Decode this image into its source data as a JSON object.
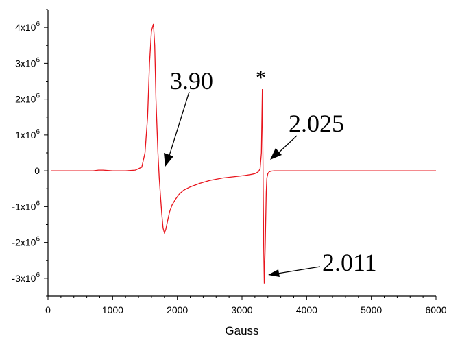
{
  "chart_data": {
    "type": "line",
    "title": "",
    "xlabel": "Gauss",
    "ylabel": "",
    "xlim": [
      0,
      6000
    ],
    "ylim": [
      -3500000,
      4500000
    ],
    "grid": false,
    "legend": "none",
    "x_ticks": [
      0,
      1000,
      2000,
      3000,
      4000,
      5000,
      6000
    ],
    "x_tick_labels": [
      "0",
      "1000",
      "2000",
      "3000",
      "4000",
      "5000",
      "6000"
    ],
    "y_ticks": [
      -3000000,
      -2000000,
      -1000000,
      0,
      1000000,
      2000000,
      3000000,
      4000000
    ],
    "y_tick_labels": [
      {
        "base": "-3x10",
        "exp": "6"
      },
      {
        "base": "-2x10",
        "exp": "6"
      },
      {
        "base": "-1x10",
        "exp": "6"
      },
      {
        "base": "0",
        "exp": ""
      },
      {
        "base": "1x10",
        "exp": "6"
      },
      {
        "base": "2x10",
        "exp": "6"
      },
      {
        "base": "3x10",
        "exp": "6"
      },
      {
        "base": "4x10",
        "exp": "6"
      }
    ],
    "series": [
      {
        "color": "#e8141c",
        "x": [
          50,
          400,
          700,
          780,
          850,
          1000,
          1200,
          1350,
          1450,
          1500,
          1540,
          1570,
          1600,
          1630,
          1650,
          1670,
          1700,
          1720,
          1740,
          1760,
          1780,
          1800,
          1820,
          1850,
          1880,
          1920,
          1970,
          2030,
          2100,
          2200,
          2350,
          2500,
          2700,
          2900,
          3050,
          3150,
          3200,
          3250,
          3280,
          3300,
          3315,
          3325,
          3335,
          3345,
          3360,
          3375,
          3385,
          3400,
          3420,
          3450,
          3500,
          3600,
          3800,
          4200,
          5000,
          6000
        ],
        "y": [
          0,
          0,
          0,
          20000,
          20000,
          0,
          0,
          20000,
          100000,
          500000,
          1500000,
          3000000,
          3900000,
          4100000,
          3500000,
          2000000,
          500000,
          -200000,
          -700000,
          -1200000,
          -1600000,
          -1730000,
          -1650000,
          -1400000,
          -1150000,
          -950000,
          -800000,
          -650000,
          -540000,
          -450000,
          -350000,
          -270000,
          -200000,
          -160000,
          -130000,
          -100000,
          -80000,
          -30000,
          50000,
          500000,
          2280000,
          0,
          -2000000,
          -3150000,
          -2000000,
          -600000,
          -200000,
          -80000,
          -30000,
          -10000,
          0,
          0,
          0,
          0,
          0,
          0
        ]
      }
    ],
    "annotations": [
      {
        "text": "3.90",
        "x": 1810,
        "y": 220000
      },
      {
        "text": "*",
        "x": 3310,
        "y": 2340000
      },
      {
        "text": "2.025",
        "x": 3390,
        "y": 270000
      },
      {
        "text": "2.011",
        "x": 3440,
        "y": -3050000
      }
    ]
  }
}
